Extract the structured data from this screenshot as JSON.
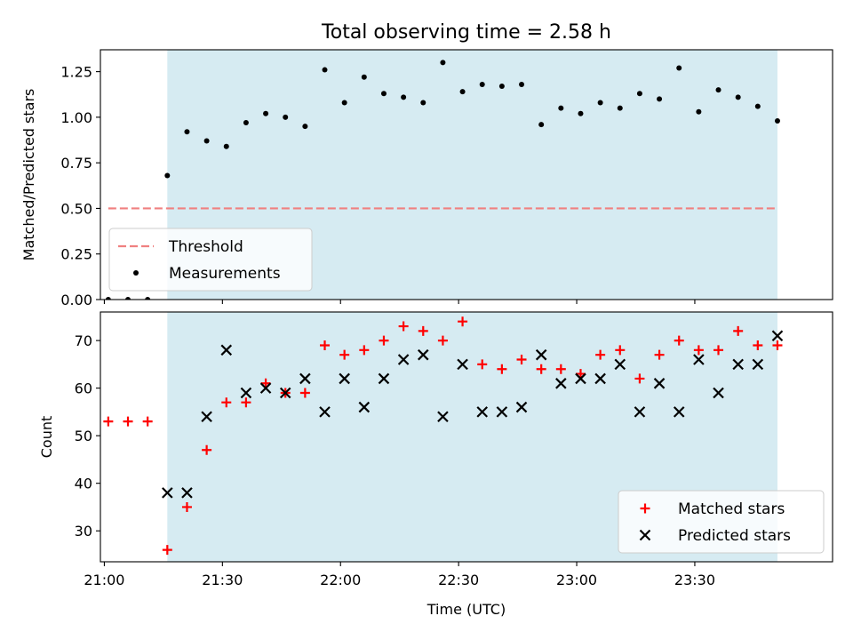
{
  "title": "Total observing time = 2.58 h",
  "xlabel": "Time (UTC)",
  "colors": {
    "shade": "#add8e6",
    "threshold": "#f08080",
    "measurement": "#000000",
    "matched": "#ff0000",
    "predicted": "#000000"
  },
  "chart_data": [
    {
      "type": "scatter",
      "ylabel": "Matched/Predicted stars",
      "ylim": [
        0.0,
        1.37
      ],
      "yticks": [
        0.0,
        0.25,
        0.5,
        0.75,
        1.0,
        1.25
      ],
      "ytick_labels": [
        "0.00",
        "0.25",
        "0.50",
        "0.75",
        "1.00",
        "1.25"
      ],
      "xlim": [
        "20:59",
        "24:05"
      ],
      "xticks": [
        "21:00",
        "21:30",
        "22:00",
        "22:30",
        "23:00",
        "23:30"
      ],
      "xtick_labels": [],
      "shaded_span": [
        "21:16",
        "23:51"
      ],
      "threshold": {
        "value": 0.5,
        "x_range": [
          "21:01",
          "23:51"
        ],
        "style": "dashed"
      },
      "legend": {
        "position": "lower left",
        "entries": [
          "Threshold",
          "Measurements"
        ]
      },
      "series": [
        {
          "name": "Measurements",
          "marker": "dot",
          "points": [
            [
              "21:01",
              0.0
            ],
            [
              "21:06",
              0.0
            ],
            [
              "21:11",
              0.0
            ],
            [
              "21:16",
              0.68
            ],
            [
              "21:21",
              0.92
            ],
            [
              "21:26",
              0.87
            ],
            [
              "21:31",
              0.84
            ],
            [
              "21:36",
              0.97
            ],
            [
              "21:41",
              1.02
            ],
            [
              "21:46",
              1.0
            ],
            [
              "21:51",
              0.95
            ],
            [
              "21:56",
              1.26
            ],
            [
              "22:01",
              1.08
            ],
            [
              "22:06",
              1.22
            ],
            [
              "22:11",
              1.13
            ],
            [
              "22:16",
              1.11
            ],
            [
              "22:21",
              1.08
            ],
            [
              "22:26",
              1.3
            ],
            [
              "22:31",
              1.14
            ],
            [
              "22:36",
              1.18
            ],
            [
              "22:41",
              1.17
            ],
            [
              "22:46",
              1.18
            ],
            [
              "22:51",
              0.96
            ],
            [
              "22:56",
              1.05
            ],
            [
              "23:01",
              1.02
            ],
            [
              "23:06",
              1.08
            ],
            [
              "23:11",
              1.05
            ],
            [
              "23:16",
              1.13
            ],
            [
              "23:21",
              1.1
            ],
            [
              "23:26",
              1.27
            ],
            [
              "23:31",
              1.03
            ],
            [
              "23:36",
              1.15
            ],
            [
              "23:41",
              1.11
            ],
            [
              "23:46",
              1.06
            ],
            [
              "23:51",
              0.98
            ]
          ]
        }
      ]
    },
    {
      "type": "scatter",
      "ylabel": "Count",
      "ylim": [
        23.5,
        76
      ],
      "yticks": [
        30,
        40,
        50,
        60,
        70
      ],
      "ytick_labels": [
        "30",
        "40",
        "50",
        "60",
        "70"
      ],
      "xlim": [
        "20:59",
        "24:05"
      ],
      "xticks": [
        "21:00",
        "21:30",
        "22:00",
        "22:30",
        "23:00",
        "23:30"
      ],
      "xtick_labels": [
        "21:00",
        "21:30",
        "22:00",
        "22:30",
        "23:00",
        "23:30"
      ],
      "shaded_span": [
        "21:16",
        "23:51"
      ],
      "legend": {
        "position": "lower right",
        "entries": [
          "Matched stars",
          "Predicted stars"
        ]
      },
      "series": [
        {
          "name": "Matched stars",
          "marker": "plus",
          "points": [
            [
              "21:01",
              53
            ],
            [
              "21:06",
              53
            ],
            [
              "21:11",
              53
            ],
            [
              "21:16",
              26
            ],
            [
              "21:21",
              35
            ],
            [
              "21:26",
              47
            ],
            [
              "21:31",
              57
            ],
            [
              "21:36",
              57
            ],
            [
              "21:41",
              61
            ],
            [
              "21:46",
              59
            ],
            [
              "21:51",
              59
            ],
            [
              "21:56",
              69
            ],
            [
              "22:01",
              67
            ],
            [
              "22:06",
              68
            ],
            [
              "22:11",
              70
            ],
            [
              "22:16",
              73
            ],
            [
              "22:21",
              72
            ],
            [
              "22:26",
              70
            ],
            [
              "22:31",
              74
            ],
            [
              "22:36",
              65
            ],
            [
              "22:41",
              64
            ],
            [
              "22:46",
              66
            ],
            [
              "22:51",
              64
            ],
            [
              "22:56",
              64
            ],
            [
              "23:01",
              63
            ],
            [
              "23:06",
              67
            ],
            [
              "23:11",
              68
            ],
            [
              "23:16",
              62
            ],
            [
              "23:21",
              67
            ],
            [
              "23:26",
              70
            ],
            [
              "23:31",
              68
            ],
            [
              "23:36",
              68
            ],
            [
              "23:41",
              72
            ],
            [
              "23:46",
              69
            ],
            [
              "23:51",
              69
            ]
          ]
        },
        {
          "name": "Predicted stars",
          "marker": "x",
          "points": [
            [
              "21:16",
              38
            ],
            [
              "21:21",
              38
            ],
            [
              "21:26",
              54
            ],
            [
              "21:31",
              68
            ],
            [
              "21:36",
              59
            ],
            [
              "21:41",
              60
            ],
            [
              "21:46",
              59
            ],
            [
              "21:51",
              62
            ],
            [
              "21:56",
              55
            ],
            [
              "22:01",
              62
            ],
            [
              "22:06",
              56
            ],
            [
              "22:11",
              62
            ],
            [
              "22:16",
              66
            ],
            [
              "22:21",
              67
            ],
            [
              "22:26",
              54
            ],
            [
              "22:31",
              65
            ],
            [
              "22:36",
              55
            ],
            [
              "22:41",
              55
            ],
            [
              "22:46",
              56
            ],
            [
              "22:51",
              67
            ],
            [
              "22:56",
              61
            ],
            [
              "23:01",
              62
            ],
            [
              "23:06",
              62
            ],
            [
              "23:11",
              65
            ],
            [
              "23:16",
              55
            ],
            [
              "23:21",
              61
            ],
            [
              "23:26",
              55
            ],
            [
              "23:31",
              66
            ],
            [
              "23:36",
              59
            ],
            [
              "23:41",
              65
            ],
            [
              "23:46",
              65
            ],
            [
              "23:51",
              71
            ]
          ]
        }
      ]
    }
  ]
}
